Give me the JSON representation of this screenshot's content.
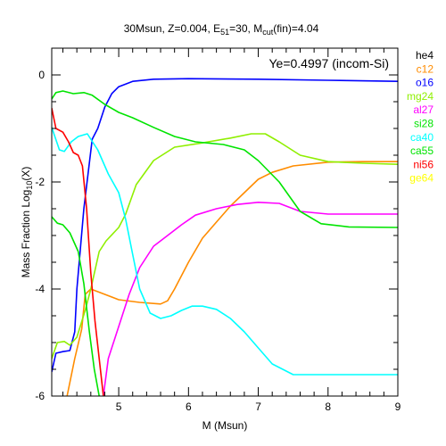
{
  "chart_data": {
    "type": "line",
    "title": "30Msun, Z=0.004, E_51=30, M_cut(fin)=4.04",
    "title_parts": {
      "prefix": "30Msun, Z=0.004, E",
      "sub1": "51",
      "mid": "=30, M",
      "sub2": "cut",
      "suffix": "(fin)=4.04"
    },
    "xlabel": "M (Msun)",
    "ylabel": "Mass Fraction Log10(X)",
    "ylabel_parts": {
      "prefix": "Mass Fraction Log",
      "sub": "10",
      "suffix": "(X)"
    },
    "annotation": "Ye=0.4997 (incom-Si)",
    "xlim": [
      4.04,
      9.0
    ],
    "ylim": [
      -6.0,
      0.5
    ],
    "x_ticks": [
      "5",
      "6",
      "7",
      "8",
      "9"
    ],
    "y_ticks": [
      "0",
      "-2",
      "-4",
      "-6"
    ],
    "grid": false,
    "legend_position": "right-outside",
    "series": [
      {
        "name": "he4",
        "color": "#000000",
        "points": []
      },
      {
        "name": "c12",
        "color": "#ff8c00",
        "points": [
          [
            4.26,
            -6.0
          ],
          [
            4.37,
            -5.3
          ],
          [
            4.47,
            -4.75
          ],
          [
            4.52,
            -4.1
          ],
          [
            4.6,
            -4.0
          ],
          [
            4.8,
            -4.1
          ],
          [
            5.0,
            -4.2
          ],
          [
            5.3,
            -4.25
          ],
          [
            5.6,
            -4.28
          ],
          [
            5.7,
            -4.22
          ],
          [
            5.8,
            -4.0
          ],
          [
            6.0,
            -3.5
          ],
          [
            6.2,
            -3.05
          ],
          [
            6.4,
            -2.75
          ],
          [
            6.6,
            -2.45
          ],
          [
            6.8,
            -2.2
          ],
          [
            7.0,
            -1.95
          ],
          [
            7.2,
            -1.82
          ],
          [
            7.5,
            -1.7
          ],
          [
            8.0,
            -1.63
          ],
          [
            8.5,
            -1.62
          ],
          [
            9.0,
            -1.62
          ]
        ]
      },
      {
        "name": "o16",
        "color": "#0000ff",
        "points": [
          [
            4.04,
            -5.55
          ],
          [
            4.1,
            -5.2
          ],
          [
            4.2,
            -5.17
          ],
          [
            4.3,
            -5.15
          ],
          [
            4.37,
            -4.8
          ],
          [
            4.4,
            -4.0
          ],
          [
            4.5,
            -2.5
          ],
          [
            4.62,
            -1.2
          ],
          [
            4.7,
            -1.0
          ],
          [
            4.8,
            -0.6
          ],
          [
            4.9,
            -0.35
          ],
          [
            5.0,
            -0.22
          ],
          [
            5.2,
            -0.12
          ],
          [
            5.5,
            -0.08
          ],
          [
            6.0,
            -0.07
          ],
          [
            7.0,
            -0.08
          ],
          [
            8.0,
            -0.1
          ],
          [
            9.0,
            -0.12
          ]
        ]
      },
      {
        "name": "mg24",
        "color": "#8fef00",
        "points": [
          [
            4.04,
            -5.3
          ],
          [
            4.12,
            -5.0
          ],
          [
            4.22,
            -4.98
          ],
          [
            4.3,
            -5.05
          ],
          [
            4.4,
            -4.9
          ],
          [
            4.52,
            -4.4
          ],
          [
            4.6,
            -4.0
          ],
          [
            4.72,
            -3.3
          ],
          [
            4.82,
            -3.1
          ],
          [
            5.0,
            -2.85
          ],
          [
            5.1,
            -2.6
          ],
          [
            5.25,
            -2.05
          ],
          [
            5.5,
            -1.6
          ],
          [
            5.8,
            -1.35
          ],
          [
            6.2,
            -1.27
          ],
          [
            6.6,
            -1.18
          ],
          [
            6.9,
            -1.1
          ],
          [
            7.1,
            -1.1
          ],
          [
            7.3,
            -1.25
          ],
          [
            7.6,
            -1.5
          ],
          [
            8.0,
            -1.62
          ],
          [
            8.5,
            -1.65
          ],
          [
            9.0,
            -1.67
          ]
        ]
      },
      {
        "name": "al27",
        "color": "#ff00ff",
        "points": [
          [
            4.78,
            -6.0
          ],
          [
            4.85,
            -5.3
          ],
          [
            4.95,
            -4.9
          ],
          [
            5.05,
            -4.5
          ],
          [
            5.15,
            -4.1
          ],
          [
            5.3,
            -3.6
          ],
          [
            5.5,
            -3.2
          ],
          [
            5.7,
            -3.0
          ],
          [
            5.9,
            -2.8
          ],
          [
            6.1,
            -2.62
          ],
          [
            6.4,
            -2.5
          ],
          [
            6.7,
            -2.42
          ],
          [
            7.0,
            -2.38
          ],
          [
            7.3,
            -2.4
          ],
          [
            7.6,
            -2.55
          ],
          [
            8.0,
            -2.6
          ],
          [
            9.0,
            -2.6
          ]
        ]
      },
      {
        "name": "si28",
        "color": "#00e400",
        "points": [
          [
            4.04,
            -0.45
          ],
          [
            4.1,
            -0.33
          ],
          [
            4.2,
            -0.3
          ],
          [
            4.35,
            -0.35
          ],
          [
            4.5,
            -0.33
          ],
          [
            4.62,
            -0.38
          ],
          [
            4.8,
            -0.55
          ],
          [
            5.0,
            -0.7
          ],
          [
            5.2,
            -0.8
          ],
          [
            5.5,
            -0.98
          ],
          [
            5.8,
            -1.15
          ],
          [
            6.1,
            -1.25
          ],
          [
            6.5,
            -1.3
          ],
          [
            6.8,
            -1.4
          ],
          [
            7.0,
            -1.6
          ],
          [
            7.3,
            -2.0
          ],
          [
            7.6,
            -2.55
          ],
          [
            7.9,
            -2.78
          ],
          [
            8.3,
            -2.84
          ],
          [
            9.0,
            -2.85
          ]
        ]
      },
      {
        "name": "ca40",
        "color": "#00ffff",
        "points": [
          [
            4.04,
            -0.98
          ],
          [
            4.15,
            -1.4
          ],
          [
            4.22,
            -1.43
          ],
          [
            4.32,
            -1.25
          ],
          [
            4.42,
            -1.15
          ],
          [
            4.55,
            -1.1
          ],
          [
            4.7,
            -1.4
          ],
          [
            4.85,
            -1.85
          ],
          [
            5.0,
            -2.2
          ],
          [
            5.1,
            -2.7
          ],
          [
            5.2,
            -3.35
          ],
          [
            5.3,
            -4.0
          ],
          [
            5.45,
            -4.45
          ],
          [
            5.6,
            -4.55
          ],
          [
            5.75,
            -4.5
          ],
          [
            5.9,
            -4.4
          ],
          [
            6.05,
            -4.32
          ],
          [
            6.2,
            -4.32
          ],
          [
            6.4,
            -4.38
          ],
          [
            6.6,
            -4.55
          ],
          [
            6.8,
            -4.8
          ],
          [
            7.0,
            -5.1
          ],
          [
            7.2,
            -5.4
          ],
          [
            7.5,
            -5.6
          ],
          [
            8.0,
            -5.6
          ],
          [
            9.0,
            -5.6
          ]
        ]
      },
      {
        "name": "ca55",
        "color": "#00e400",
        "points": [
          [
            4.04,
            -2.65
          ],
          [
            4.12,
            -2.77
          ],
          [
            4.2,
            -2.8
          ],
          [
            4.3,
            -2.95
          ],
          [
            4.42,
            -3.3
          ],
          [
            4.5,
            -3.9
          ],
          [
            4.58,
            -4.8
          ],
          [
            4.65,
            -5.5
          ],
          [
            4.72,
            -6.0
          ]
        ]
      },
      {
        "name": "ni56",
        "color": "#ff0000",
        "points": [
          [
            4.04,
            -0.62
          ],
          [
            4.1,
            -1.0
          ],
          [
            4.2,
            -1.07
          ],
          [
            4.28,
            -1.25
          ],
          [
            4.35,
            -1.45
          ],
          [
            4.42,
            -1.5
          ],
          [
            4.48,
            -1.7
          ],
          [
            4.54,
            -2.5
          ],
          [
            4.6,
            -3.7
          ],
          [
            4.66,
            -4.6
          ],
          [
            4.72,
            -5.3
          ],
          [
            4.78,
            -6.0
          ]
        ]
      },
      {
        "name": "ge64",
        "color": "#ffff00",
        "points": []
      }
    ]
  }
}
